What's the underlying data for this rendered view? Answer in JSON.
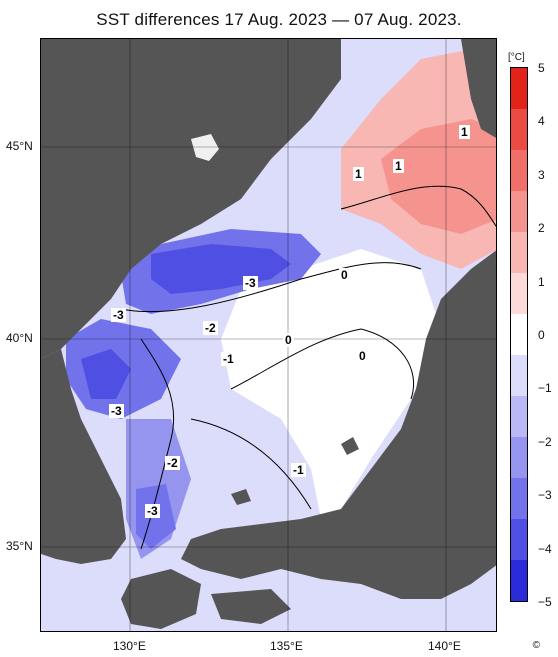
{
  "title": "SST differences 17 Aug. 2023 — 07 Aug. 2023.",
  "latitude_labels": [
    "45°N",
    "40°N",
    "35°N"
  ],
  "longitude_labels": [
    "130°E",
    "135°E",
    "140°E"
  ],
  "colorbar": {
    "unit": "[°C]",
    "ticks": [
      "5",
      "4",
      "3",
      "2",
      "1",
      "0",
      "−1",
      "−2",
      "−3",
      "−4",
      "−5"
    ],
    "colors": [
      "#e2231a",
      "#ea4b43",
      "#f07069",
      "#f5948f",
      "#f9b7b4",
      "#fcdad9",
      "#ffffff",
      "#dcdcfb",
      "#b9b9f6",
      "#9595f0",
      "#7272ea",
      "#4f4fe3",
      "#2b2bd9"
    ]
  },
  "contour_labels": [
    "1",
    "1",
    "1",
    "0",
    "0",
    "0",
    "-1",
    "-1",
    "-2",
    "-2",
    "-3",
    "-3",
    "-3",
    "-3"
  ],
  "copyright": "©"
}
